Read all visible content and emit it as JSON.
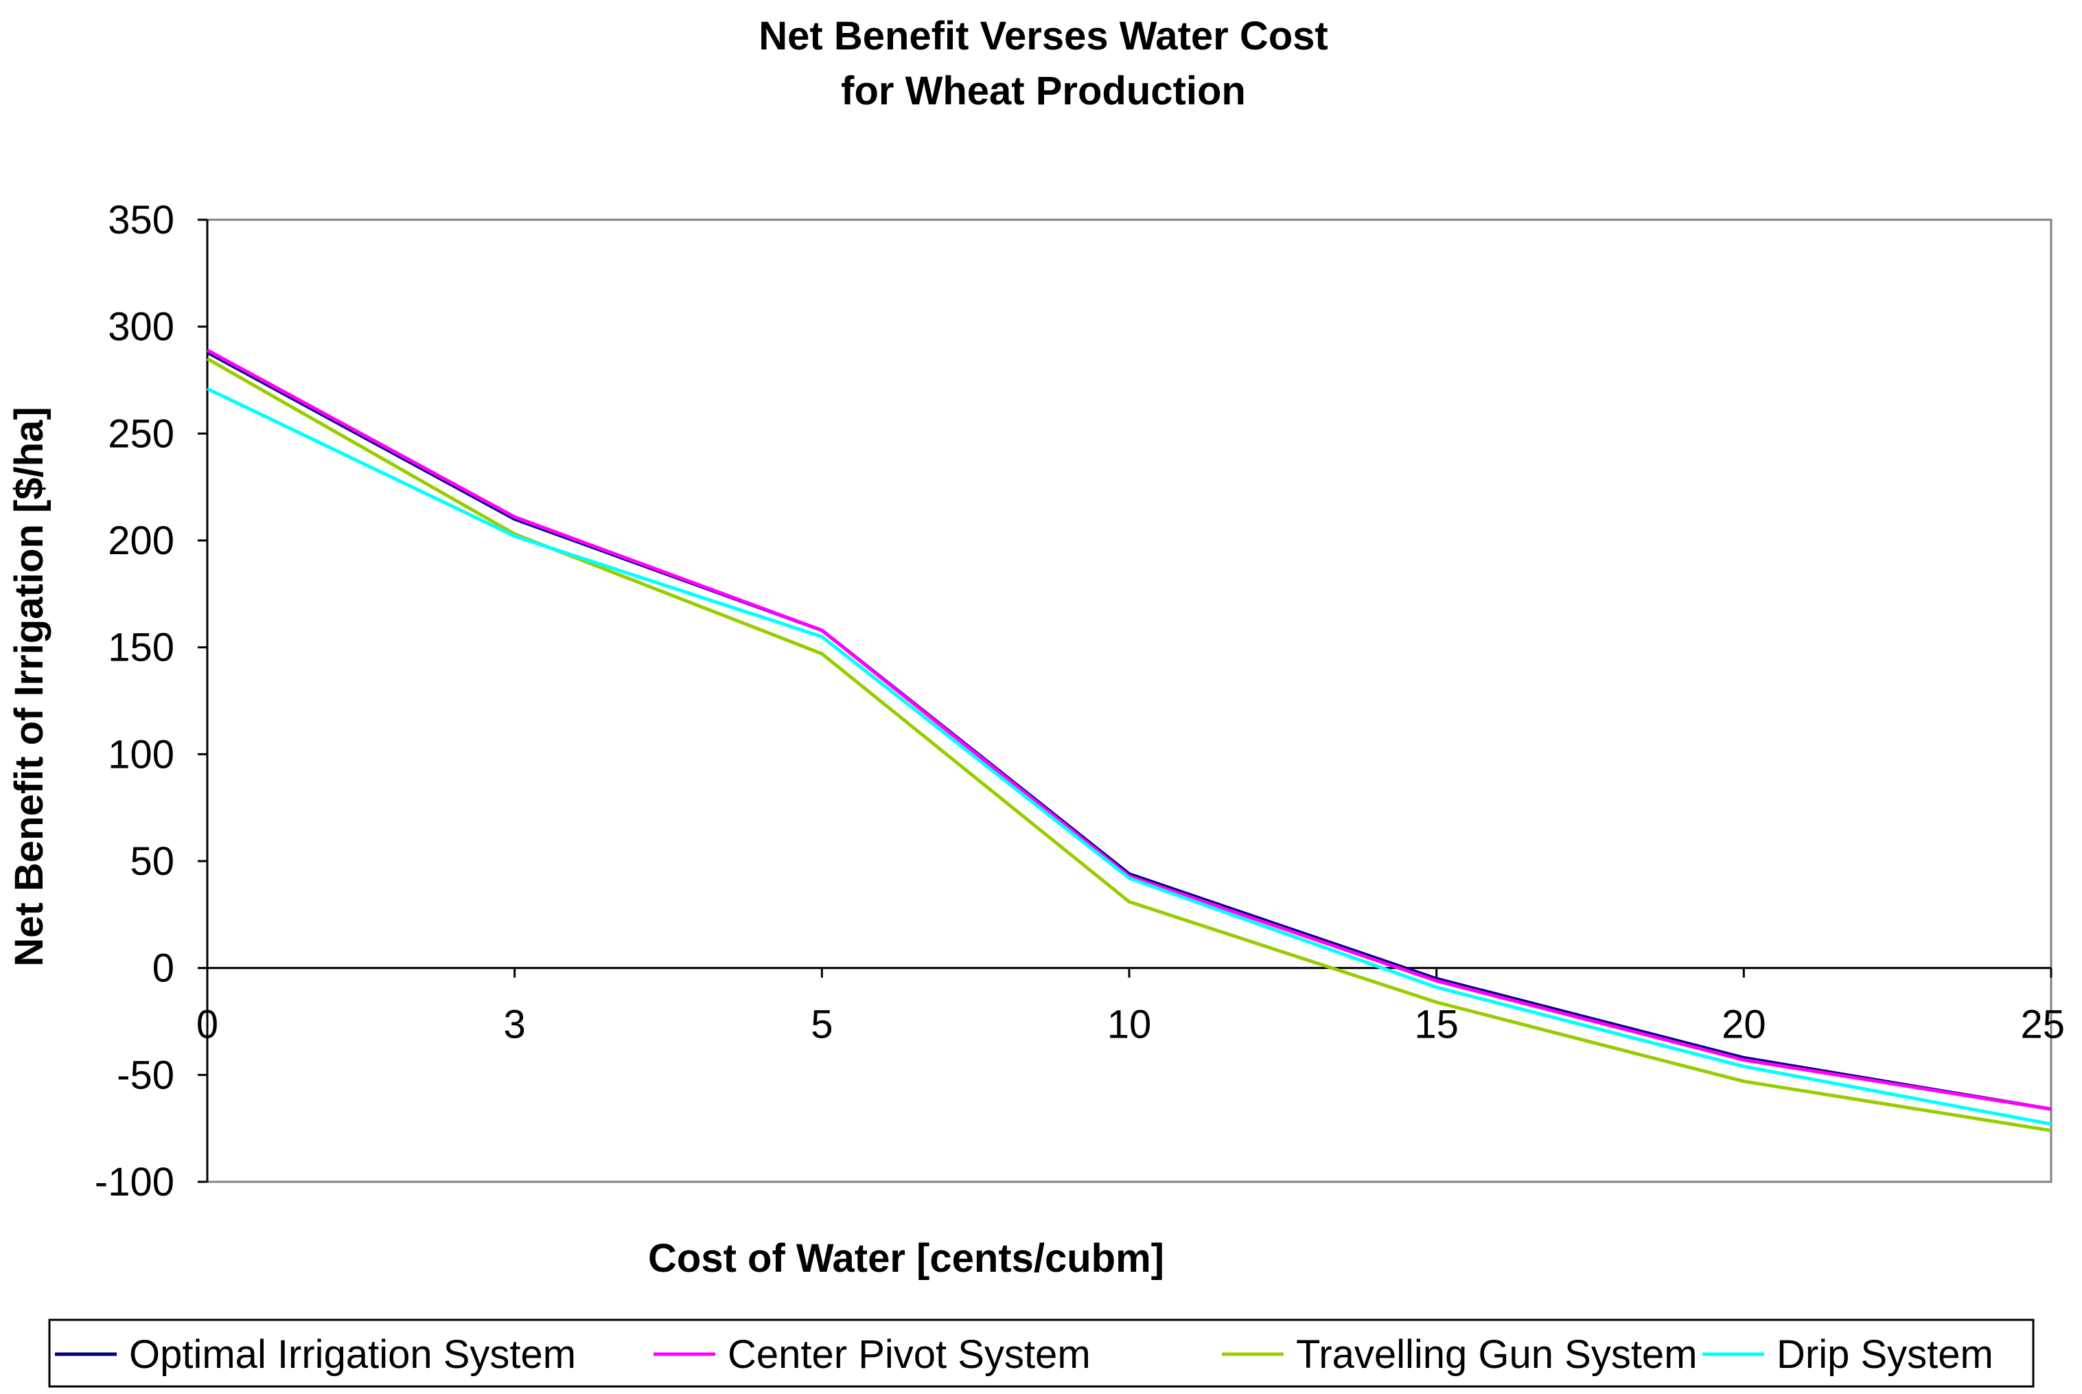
{
  "chart_data": {
    "type": "line",
    "title_lines": [
      "Net Benefit Verses Water Cost",
      "for Wheat Production"
    ],
    "xlabel": "Cost of Water [cents/cubm]",
    "ylabel": "Net Benefit of Irrigation [$/ha]",
    "categories": [
      "0",
      "3",
      "5",
      "10",
      "15",
      "20",
      "25"
    ],
    "ylim": [
      -100,
      350
    ],
    "yticks": [
      350,
      300,
      250,
      200,
      150,
      100,
      50,
      0,
      -50,
      -100
    ],
    "grid": false,
    "legend_position": "bottom",
    "series": [
      {
        "name": "Optimal Irrigation System",
        "color": "#000080",
        "values": [
          288,
          210,
          158,
          44,
          -5,
          -42,
          -66
        ]
      },
      {
        "name": "Center Pivot System",
        "color": "#FF00FF",
        "values": [
          289,
          211,
          158,
          43,
          -6,
          -43,
          -66
        ]
      },
      {
        "name": "Travelling Gun System",
        "color": "#99CC00",
        "values": [
          285,
          203,
          147,
          31,
          -16,
          -53,
          -76
        ]
      },
      {
        "name": "Drip System",
        "color": "#00FFFF",
        "values": [
          271,
          202,
          155,
          42,
          -9,
          -46,
          -73
        ]
      }
    ]
  }
}
